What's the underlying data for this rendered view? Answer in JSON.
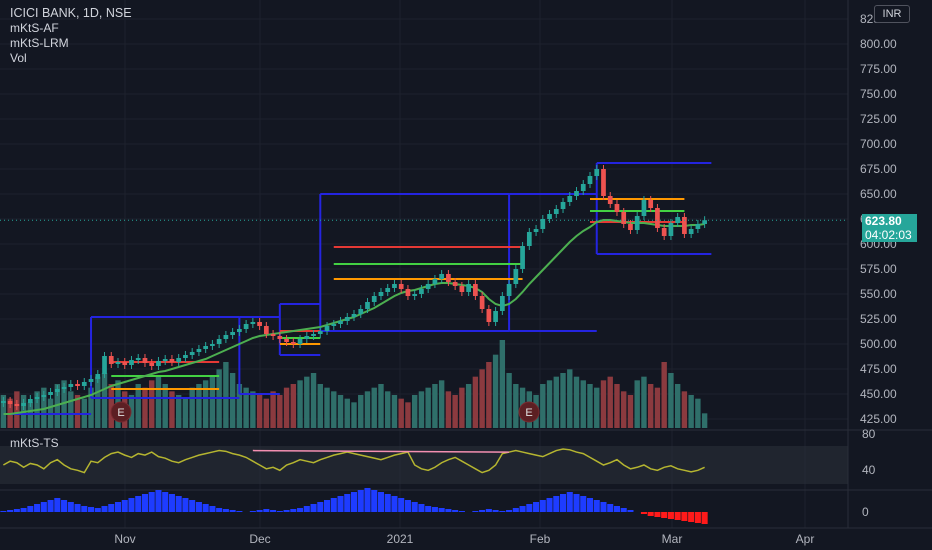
{
  "legend": {
    "symbol": "ICICI BANK, 1D, NSE",
    "ind1": "mKtS-AF",
    "ind2": "mKtS-LRM",
    "ind3": "Vol"
  },
  "oscillator_label": "mKtS-TS",
  "currency_button": "INR",
  "last_price": {
    "value": "623.80",
    "countdown": "04:02:03"
  },
  "colors": {
    "background": "#131722",
    "up": "#26a69a",
    "down": "#ef5350",
    "box": "#2424e0",
    "ma": "#4caf50",
    "osc": "#b5b530",
    "bars_up": "#2f6f6a",
    "bars_down": "#8b3a3f"
  },
  "chart_data": {
    "type": "candlestick",
    "price_axis_ticks": [
      "425.00",
      "450.00",
      "475.00",
      "500.00",
      "525.00",
      "550.00",
      "575.00",
      "600.00",
      "625.00",
      "650.00",
      "675.00",
      "700.00",
      "725.00",
      "750.00",
      "775.00",
      "800.00",
      "825.00"
    ],
    "osc_axis_ticks": [
      "80",
      "40",
      "0"
    ],
    "time_axis_ticks": [
      "Nov",
      "Dec",
      "2021",
      "Feb",
      "Mar",
      "Apr"
    ],
    "y_range": [
      420,
      830
    ],
    "earnings_markers": [
      "E",
      "E"
    ],
    "closes": [
      443,
      440,
      438,
      441,
      445,
      447,
      449,
      452,
      455,
      457,
      460,
      458,
      462,
      465,
      470,
      488,
      480,
      482,
      479,
      484,
      486,
      481,
      478,
      483,
      485,
      482,
      486,
      489,
      492,
      495,
      498,
      500,
      505,
      509,
      512,
      515,
      520,
      522,
      518,
      510,
      508,
      505,
      502,
      500,
      505,
      508,
      510,
      513,
      518,
      520,
      523,
      527,
      530,
      535,
      542,
      548,
      552,
      556,
      560,
      555,
      548,
      550,
      555,
      560,
      565,
      570,
      562,
      558,
      552,
      560,
      548,
      535,
      522,
      533,
      548,
      560,
      575,
      598,
      612,
      615,
      625,
      630,
      635,
      642,
      648,
      653,
      660,
      668,
      675,
      648,
      640,
      632,
      620,
      614,
      628,
      644,
      636,
      616,
      608,
      621,
      627,
      610,
      615,
      620,
      623.8
    ],
    "ma_values": [
      430,
      430,
      431,
      432,
      433,
      434,
      435,
      437,
      439,
      441,
      443,
      445,
      447,
      449,
      452,
      455,
      458,
      460,
      462,
      464,
      466,
      468,
      470,
      472,
      473,
      475,
      477,
      479,
      481,
      483,
      485,
      488,
      491,
      494,
      497,
      500,
      503,
      506,
      508,
      509,
      510,
      511,
      512,
      513,
      514,
      515,
      516,
      517,
      519,
      521,
      523,
      525,
      527,
      530,
      533,
      536,
      540,
      544,
      548,
      551,
      553,
      554,
      556,
      558,
      560,
      561,
      561,
      560,
      559,
      558,
      556,
      552,
      545,
      540,
      538,
      540,
      545,
      552,
      560,
      567,
      574,
      581,
      588,
      595,
      602,
      608,
      613,
      617,
      622,
      624,
      624,
      623,
      622,
      621,
      621,
      621,
      620,
      619,
      618,
      618,
      618,
      618,
      619,
      619,
      620
    ],
    "box_levels": [
      {
        "from": 0,
        "to": 13,
        "top": 430,
        "mid": 430,
        "bottom": 430
      },
      {
        "from": 13,
        "to": 35,
        "top": 527,
        "mid": 470,
        "bottom": 446
      },
      {
        "from": 35,
        "to": 41,
        "top": 527,
        "mid": 505,
        "bottom": 450
      },
      {
        "from": 41,
        "to": 47,
        "top": 540,
        "mid": 510,
        "bottom": 489
      },
      {
        "from": 47,
        "to": 75,
        "top": 650,
        "mid": 580,
        "bottom": 513
      },
      {
        "from": 75,
        "to": 88,
        "top": 650,
        "mid": 580,
        "bottom": 513
      },
      {
        "from": 88,
        "to": 105,
        "top": 681,
        "mid": 635,
        "bottom": 590
      }
    ],
    "horizontal_levels": [
      {
        "from": 16,
        "to": 32,
        "value": 482,
        "color": "red"
      },
      {
        "from": 16,
        "to": 32,
        "value": 468,
        "color": "green"
      },
      {
        "from": 16,
        "to": 32,
        "value": 455,
        "color": "orange"
      },
      {
        "from": 41,
        "to": 47,
        "value": 513,
        "color": "red"
      },
      {
        "from": 41,
        "to": 47,
        "value": 506,
        "color": "green"
      },
      {
        "from": 41,
        "to": 47,
        "value": 500,
        "color": "orange"
      },
      {
        "from": 49,
        "to": 77,
        "value": 597,
        "color": "red"
      },
      {
        "from": 49,
        "to": 77,
        "value": 580,
        "color": "green"
      },
      {
        "from": 49,
        "to": 77,
        "value": 565,
        "color": "orange"
      },
      {
        "from": 87,
        "to": 101,
        "value": 645,
        "color": "orange"
      },
      {
        "from": 87,
        "to": 101,
        "value": 633,
        "color": "green"
      },
      {
        "from": 87,
        "to": 101,
        "value": 622,
        "color": "red"
      }
    ],
    "volume": [
      9,
      8,
      10,
      9,
      7,
      10,
      11,
      8,
      12,
      13,
      10,
      9,
      8,
      11,
      14,
      15,
      12,
      13,
      10,
      9,
      12,
      11,
      13,
      14,
      12,
      10,
      9,
      8,
      11,
      12,
      13,
      14,
      16,
      18,
      15,
      12,
      11,
      10,
      9,
      8,
      10,
      9,
      11,
      12,
      13,
      14,
      15,
      12,
      11,
      10,
      9,
      8,
      7,
      9,
      10,
      11,
      12,
      10,
      9,
      8,
      7,
      9,
      10,
      11,
      12,
      13,
      10,
      9,
      11,
      12,
      14,
      16,
      18,
      20,
      24,
      15,
      12,
      11,
      10,
      9,
      12,
      13,
      14,
      15,
      16,
      14,
      13,
      12,
      11,
      13,
      14,
      12,
      10,
      9,
      13,
      14,
      12,
      11,
      18,
      15,
      12,
      10,
      9,
      8,
      4
    ],
    "oscillator": [
      55,
      60,
      58,
      52,
      57,
      55,
      50,
      58,
      62,
      55,
      50,
      48,
      45,
      60,
      58,
      65,
      70,
      72,
      68,
      65,
      70,
      68,
      72,
      66,
      64,
      60,
      58,
      62,
      65,
      68,
      70,
      72,
      74,
      73,
      70,
      68,
      65,
      60,
      55,
      50,
      52,
      48,
      55,
      58,
      62,
      60,
      58,
      62,
      65,
      68,
      70,
      72,
      70,
      68,
      66,
      64,
      62,
      65,
      68,
      70,
      72,
      55,
      50,
      48,
      52,
      58,
      62,
      65,
      60,
      55,
      50,
      45,
      48,
      55,
      70,
      72,
      74,
      72,
      70,
      68,
      66,
      70,
      74,
      76,
      75,
      72,
      70,
      65,
      60,
      55,
      58,
      62,
      55,
      50,
      52,
      55,
      50,
      48,
      52,
      54,
      50,
      48,
      46,
      48,
      52
    ],
    "momentum": [
      1,
      2,
      3,
      4,
      6,
      8,
      10,
      12,
      14,
      12,
      10,
      8,
      6,
      5,
      4,
      6,
      8,
      10,
      12,
      14,
      16,
      18,
      20,
      22,
      20,
      18,
      16,
      14,
      12,
      10,
      8,
      6,
      4,
      3,
      2,
      1,
      0,
      1,
      2,
      3,
      2,
      1,
      2,
      3,
      4,
      6,
      8,
      10,
      12,
      14,
      16,
      18,
      20,
      22,
      24,
      22,
      20,
      18,
      16,
      14,
      12,
      10,
      8,
      6,
      5,
      4,
      3,
      2,
      1,
      0,
      1,
      2,
      3,
      2,
      1,
      2,
      4,
      6,
      8,
      10,
      12,
      14,
      16,
      18,
      20,
      18,
      16,
      14,
      12,
      10,
      8,
      6,
      4,
      2,
      0,
      -2,
      -4,
      -5,
      -6,
      -7,
      -8,
      -9,
      -10,
      -11,
      -12
    ]
  }
}
